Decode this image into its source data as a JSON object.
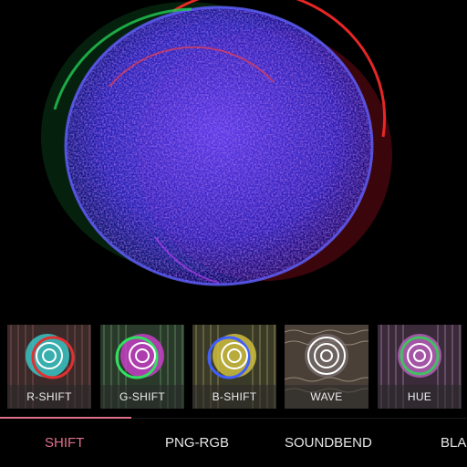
{
  "canvas": {
    "description_icon": "glitched-sphere-image"
  },
  "filters": [
    {
      "label": "R-SHIFT",
      "tint": "#e04040"
    },
    {
      "label": "G-SHIFT",
      "tint": "#40c060"
    },
    {
      "label": "B-SHIFT",
      "tint": "#c0b040"
    },
    {
      "label": "WAVE",
      "tint": "#b09070"
    },
    {
      "label": "HUE",
      "tint": "#d060d0"
    }
  ],
  "tabs": [
    {
      "label": "SHIFT",
      "active": true
    },
    {
      "label": "PNG-RGB",
      "active": false
    },
    {
      "label": "SOUNDBEND",
      "active": false
    },
    {
      "label": "BLA",
      "active": false
    }
  ],
  "colors": {
    "accent": "#e0708a",
    "background": "#000000"
  }
}
